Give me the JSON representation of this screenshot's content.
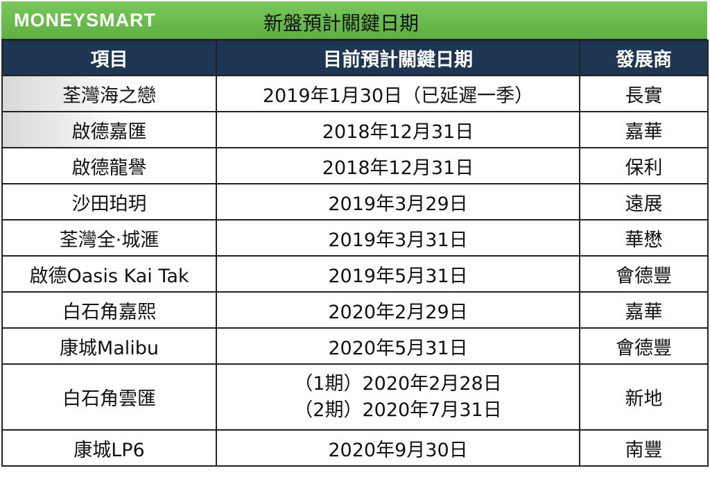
{
  "header": {
    "logo": "MONEYSMART",
    "title": "新盤預計關鍵日期"
  },
  "table": {
    "columns": [
      "項目",
      "目前預計關鍵日期",
      "發展商"
    ],
    "rows": [
      [
        "荃灣海之戀",
        "2019年1月30日（已延遲一季）",
        "長實"
      ],
      [
        "啟德嘉匯",
        "2018年12月31日",
        "嘉華"
      ],
      [
        "啟德龍譽",
        "2018年12月31日",
        "保利"
      ],
      [
        "沙田珀玥",
        "2019年3月29日",
        "遠展"
      ],
      [
        "荃灣全·城滙",
        "2019年3月31日",
        "華懋"
      ],
      [
        "啟德Oasis Kai Tak",
        "2019年5月31日",
        "會德豐"
      ],
      [
        "白石角嘉熙",
        "2020年2月29日",
        "嘉華"
      ],
      [
        "康城Malibu",
        "2020年5月31日",
        "會德豐"
      ],
      [
        "白石角雲匯",
        [
          "（1期）2020年2月28日",
          "（2期）2020年7月31日"
        ],
        "新地"
      ],
      [
        "康城LP6",
        "2020年9月30日",
        "南豐"
      ]
    ]
  }
}
